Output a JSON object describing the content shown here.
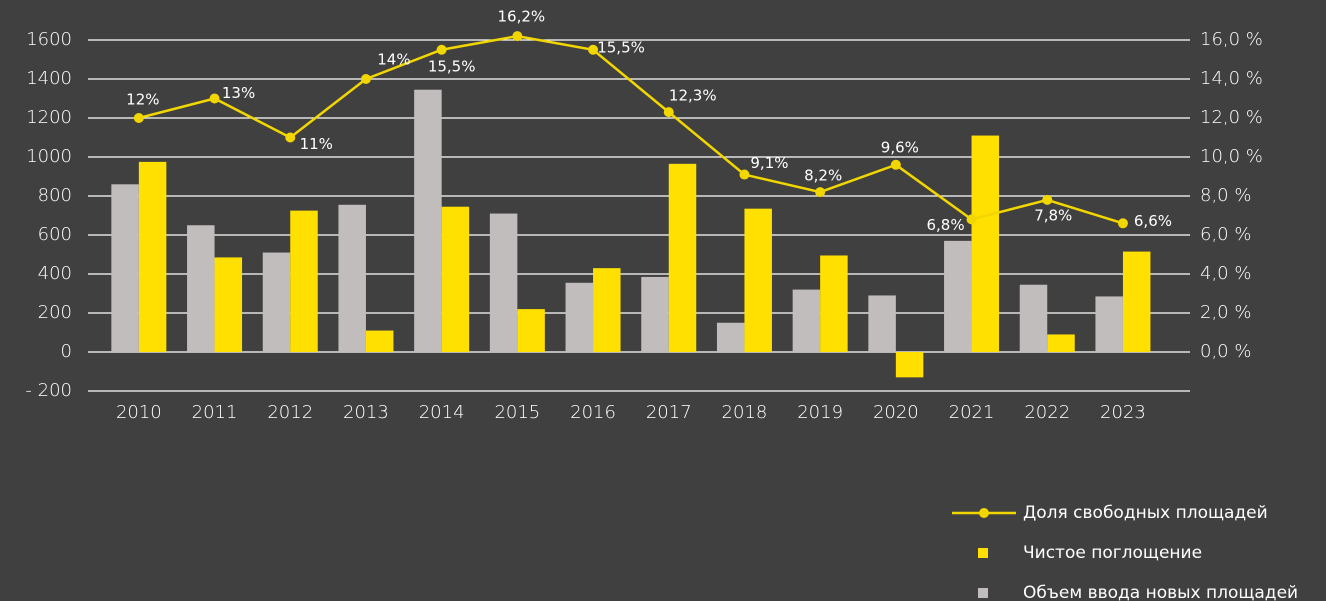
{
  "chart_data": {
    "type": "bar",
    "categories": [
      "2010",
      "2011",
      "2012",
      "2013",
      "2014",
      "2015",
      "2016",
      "2017",
      "2018",
      "2019",
      "2020",
      "2021",
      "2022",
      "2023"
    ],
    "series": [
      {
        "name": "Объем ввода новых площадей",
        "color": "#c1bdbc",
        "values": [
          860,
          650,
          510,
          755,
          1345,
          710,
          355,
          385,
          150,
          320,
          290,
          570,
          345,
          285
        ]
      },
      {
        "name": "Чистое поглощение",
        "color": "#ffe000",
        "values": [
          975,
          485,
          725,
          110,
          745,
          220,
          430,
          965,
          735,
          495,
          -130,
          1110,
          90,
          515
        ]
      },
      {
        "name": "Доля свободных площадей",
        "type": "line",
        "axis": "y2",
        "color": "#f2d600",
        "values": [
          12,
          13,
          11,
          14,
          15.5,
          16.2,
          15.5,
          12.3,
          9.1,
          8.2,
          9.6,
          6.8,
          7.8,
          6.6
        ],
        "value_labels": [
          "12%",
          "13%",
          "11%",
          "14%",
          "15,5%",
          "16,2%",
          "15,5%",
          "12,3%",
          "9,1%",
          "8,2%",
          "9,6%",
          "6,8%",
          "7,8%",
          "6,6%"
        ]
      }
    ],
    "ylim": [
      -200,
      1600
    ],
    "yticks": [
      {
        "value": -200,
        "label": "- 200"
      },
      0,
      200,
      400,
      600,
      800,
      1000,
      1200,
      1400,
      1600
    ],
    "y2lim": [
      -2,
      16
    ],
    "y2ticks": [
      {
        "value": 0,
        "label": "0,0 %"
      },
      {
        "value": 2,
        "label": "2,0 %"
      },
      {
        "value": 4,
        "label": "4,0 %"
      },
      {
        "value": 6,
        "label": "6,0 %"
      },
      {
        "value": 8,
        "label": "8,0 %"
      },
      {
        "value": 10,
        "label": "10,0 %"
      },
      {
        "value": 12,
        "label": "12,0 %"
      },
      {
        "value": 14,
        "label": "14,0 %"
      },
      {
        "value": 16,
        "label": "16,0 %"
      }
    ],
    "grid": true,
    "legend": "bottom-right"
  }
}
